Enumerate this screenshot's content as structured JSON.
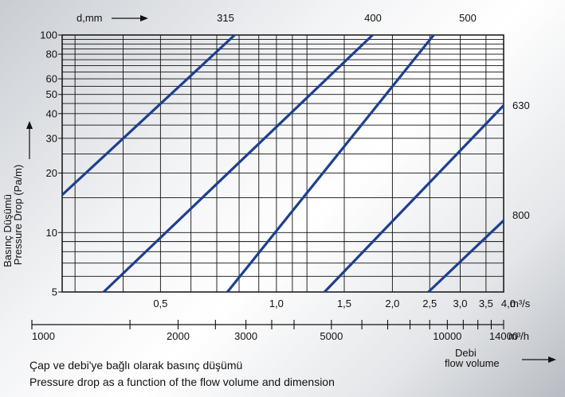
{
  "chart_data": {
    "type": "line",
    "ylabel_tr": "Basınç Düşümü",
    "ylabel_en": "Pressure Drop (Pa/m)",
    "x_top_label": "d,mm",
    "x_unit_m3s": "m³/s",
    "x_unit_m3h": "m³/h",
    "flow_label_tr": "Debi",
    "flow_label_en": "flow  volume",
    "yscale": "log",
    "xscale": "log",
    "ylim": [
      5,
      100
    ],
    "xlim_m3s": [
      0.2778,
      3.889
    ],
    "y_ticks": [
      5,
      10,
      20,
      30,
      40,
      50,
      60,
      80,
      100
    ],
    "y_tick_labels": [
      "5",
      "10",
      "20",
      "30",
      "40",
      "50",
      "60",
      "80",
      "100"
    ],
    "x_ticks_m3s": [
      0.5,
      1.0,
      1.5,
      2.0,
      2.5,
      3.0,
      3.5,
      4.0
    ],
    "x_tick_labels_m3s": [
      "0,5",
      "1,0",
      "1,5",
      "2,0",
      "2,5",
      "3,0",
      "3,5",
      "4,0"
    ],
    "x_ticks_m3h": [
      1000,
      2000,
      3000,
      5000,
      10000,
      14000
    ],
    "x_tick_labels_m3h": [
      "1000",
      "2000",
      "3000",
      "5000",
      "10000",
      "14000"
    ],
    "grid": true,
    "series": [
      {
        "name": "",
        "x_m3s": [
          0.2778,
          0.779
        ],
        "y": [
          15.5,
          100
        ]
      },
      {
        "name": "315",
        "x_m3s": [
          0.356,
          1.777
        ],
        "y": [
          5,
          100
        ]
      },
      {
        "name": "400",
        "x_m3s": [
          0.746,
          2.56
        ],
        "y": [
          5,
          100
        ]
      },
      {
        "name": "500",
        "x_m3s": [
          1.333,
          3.889
        ],
        "y": [
          5,
          44
        ]
      },
      {
        "name": "630",
        "x_m3s": [
          2.48,
          3.889
        ],
        "y": [
          5,
          11.5
        ]
      },
      {
        "name": "800",
        "x_m3s": [],
        "y": []
      }
    ],
    "top_labels": [
      "315",
      "400",
      "500"
    ],
    "right_labels": [
      "630",
      "800"
    ]
  },
  "captions": {
    "tr": "Çap ve debi'ye bağlı olarak basınç düşümü",
    "en": "Pressure drop as  a  function of the flow volume and dimension"
  },
  "colors": {
    "line": "#1f3f8f",
    "grid": "#111111"
  }
}
